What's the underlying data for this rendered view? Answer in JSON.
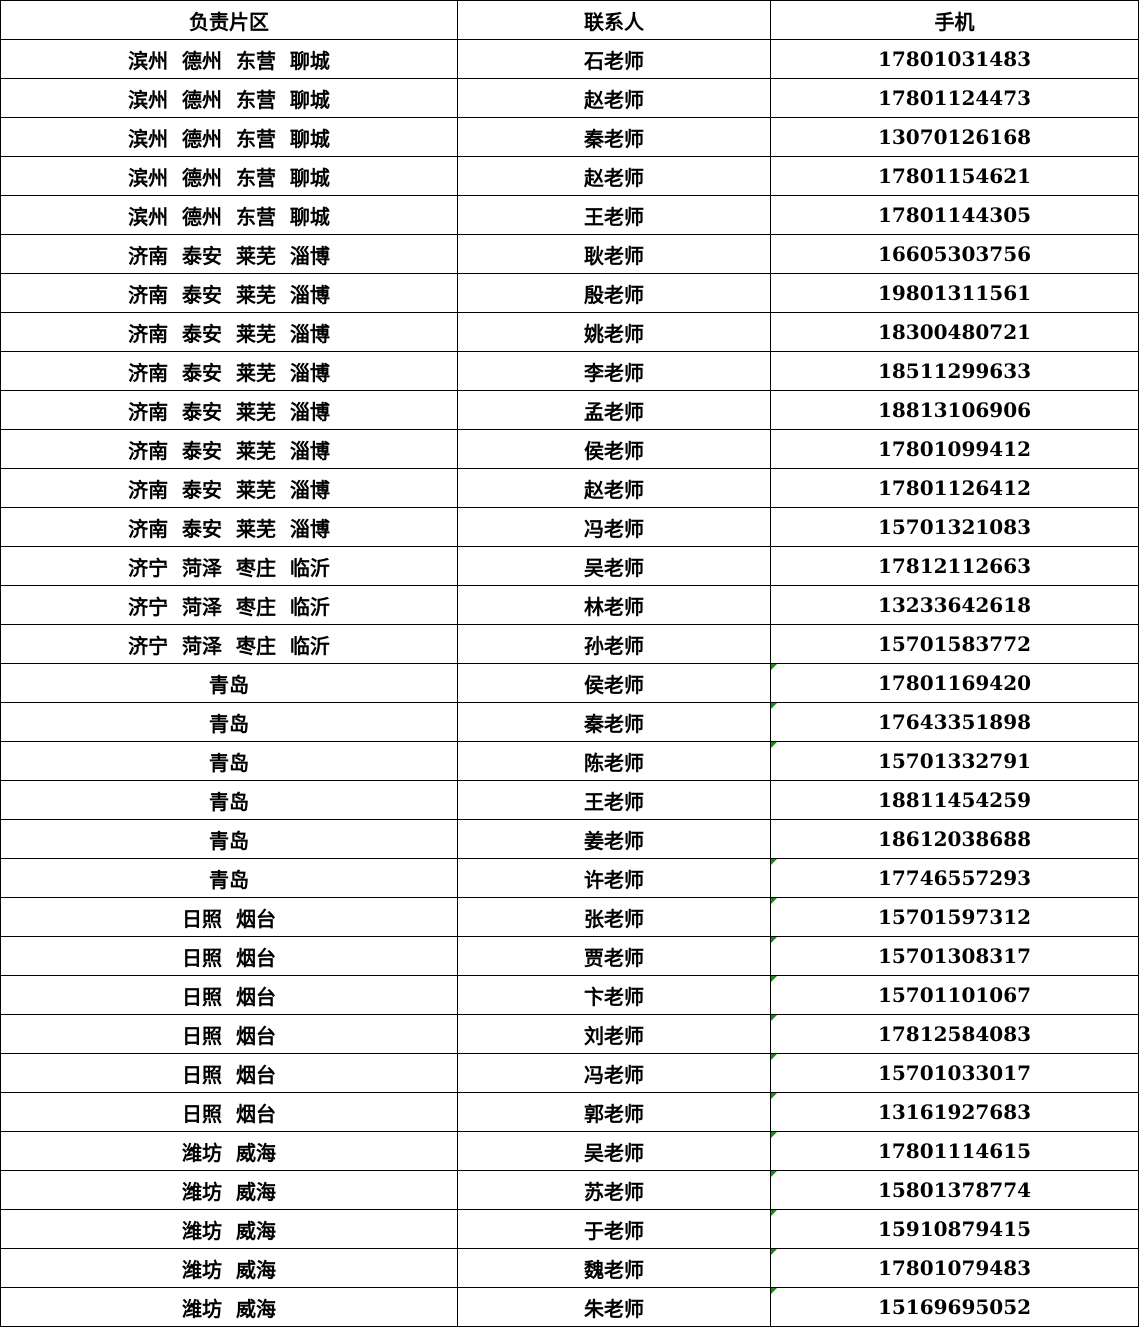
{
  "headers": [
    "负责片区",
    "联系人",
    "手机"
  ],
  "flag_color": "#1a8a1a",
  "rows": [
    {
      "region": "滨州  德州  东营  聊城",
      "contact": "石老师",
      "phone": "17801031483",
      "flag": false
    },
    {
      "region": "滨州  德州  东营  聊城",
      "contact": "赵老师",
      "phone": "17801124473",
      "flag": false
    },
    {
      "region": "滨州  德州  东营  聊城",
      "contact": "秦老师",
      "phone": "13070126168",
      "flag": false
    },
    {
      "region": "滨州  德州  东营  聊城",
      "contact": "赵老师",
      "phone": "17801154621",
      "flag": false
    },
    {
      "region": "滨州  德州  东营  聊城",
      "contact": "王老师",
      "phone": "17801144305",
      "flag": false
    },
    {
      "region": "济南  泰安  莱芜  淄博",
      "contact": "耿老师",
      "phone": "16605303756",
      "flag": false
    },
    {
      "region": "济南  泰安  莱芜  淄博",
      "contact": "殷老师",
      "phone": "19801311561",
      "flag": false
    },
    {
      "region": "济南  泰安  莱芜  淄博",
      "contact": "姚老师",
      "phone": "18300480721",
      "flag": false
    },
    {
      "region": "济南  泰安  莱芜  淄博",
      "contact": "李老师",
      "phone": "18511299633",
      "flag": false
    },
    {
      "region": "济南  泰安  莱芜  淄博",
      "contact": "孟老师",
      "phone": "18813106906",
      "flag": false
    },
    {
      "region": "济南  泰安  莱芜  淄博",
      "contact": "侯老师",
      "phone": "17801099412",
      "flag": false
    },
    {
      "region": "济南  泰安  莱芜  淄博",
      "contact": "赵老师",
      "phone": "17801126412",
      "flag": false
    },
    {
      "region": "济南  泰安  莱芜  淄博",
      "contact": "冯老师",
      "phone": "15701321083",
      "flag": false
    },
    {
      "region": "济宁  菏泽  枣庄  临沂",
      "contact": "吴老师",
      "phone": "17812112663",
      "flag": false
    },
    {
      "region": "济宁  菏泽  枣庄  临沂",
      "contact": "林老师",
      "phone": "13233642618",
      "flag": false
    },
    {
      "region": "济宁  菏泽  枣庄  临沂",
      "contact": "孙老师",
      "phone": "15701583772",
      "flag": false
    },
    {
      "region": "青岛",
      "contact": "侯老师",
      "phone": "17801169420",
      "flag": true
    },
    {
      "region": "青岛",
      "contact": "秦老师",
      "phone": "17643351898",
      "flag": true
    },
    {
      "region": "青岛",
      "contact": "陈老师",
      "phone": "15701332791",
      "flag": true
    },
    {
      "region": "青岛",
      "contact": "王老师",
      "phone": "18811454259",
      "flag": false
    },
    {
      "region": "青岛",
      "contact": "姜老师",
      "phone": "18612038688",
      "flag": false
    },
    {
      "region": "青岛",
      "contact": "许老师",
      "phone": "17746557293",
      "flag": true
    },
    {
      "region": "日照  烟台",
      "contact": "张老师",
      "phone": "15701597312",
      "flag": true
    },
    {
      "region": "日照  烟台",
      "contact": "贾老师",
      "phone": "15701308317",
      "flag": true
    },
    {
      "region": "日照  烟台",
      "contact": "卞老师",
      "phone": "15701101067",
      "flag": true
    },
    {
      "region": "日照  烟台",
      "contact": "刘老师",
      "phone": "17812584083",
      "flag": true
    },
    {
      "region": "日照  烟台",
      "contact": "冯老师",
      "phone": "15701033017",
      "flag": true
    },
    {
      "region": "日照  烟台",
      "contact": "郭老师",
      "phone": "13161927683",
      "flag": true
    },
    {
      "region": "潍坊  威海",
      "contact": "吴老师",
      "phone": "17801114615",
      "flag": true
    },
    {
      "region": "潍坊  威海",
      "contact": "苏老师",
      "phone": "15801378774",
      "flag": true
    },
    {
      "region": "潍坊  威海",
      "contact": "于老师",
      "phone": "15910879415",
      "flag": true
    },
    {
      "region": "潍坊  威海",
      "contact": "魏老师",
      "phone": "17801079483",
      "flag": true
    },
    {
      "region": "潍坊  威海",
      "contact": "朱老师",
      "phone": "15169695052",
      "flag": true
    }
  ]
}
